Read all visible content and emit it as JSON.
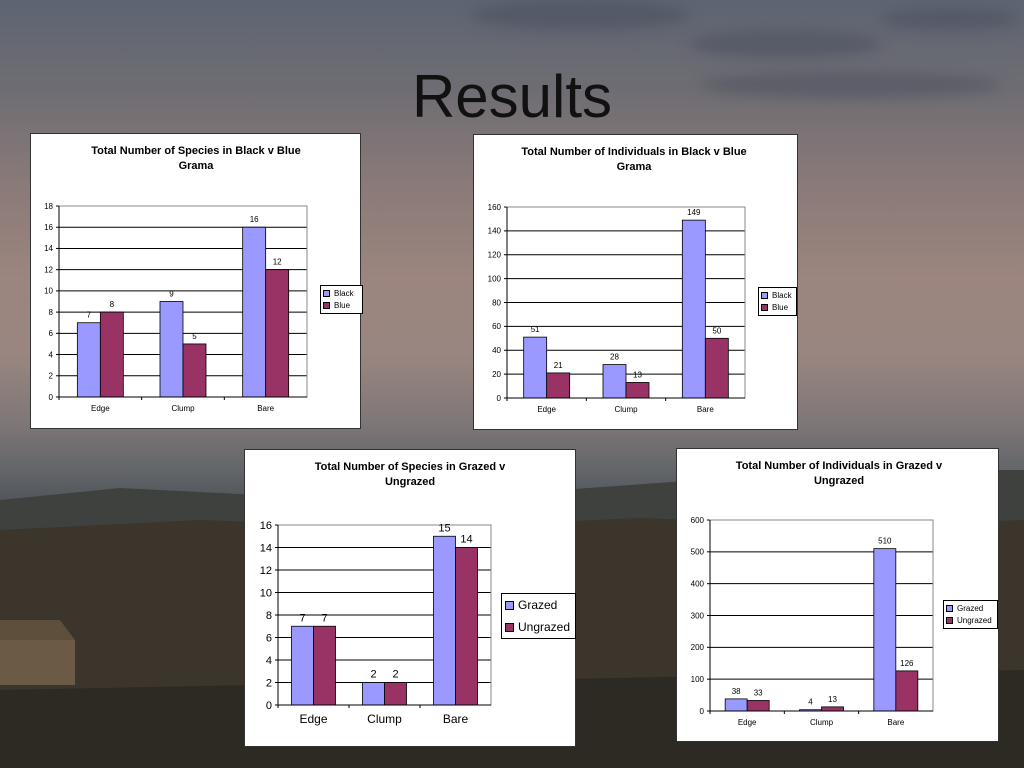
{
  "slide": {
    "title": "Results"
  },
  "colors": {
    "series1": "#9999ff",
    "series2": "#993366",
    "grid": "#000000"
  },
  "chart_data": [
    {
      "type": "bar",
      "title": "Total Number of Species in Black v Blue Grama",
      "categories": [
        "Edge",
        "Clump",
        "Bare"
      ],
      "series": [
        {
          "name": "Black",
          "values": [
            7,
            9,
            16
          ]
        },
        {
          "name": "Blue",
          "values": [
            8,
            5,
            12
          ]
        }
      ],
      "ylim": [
        0,
        18
      ],
      "yticks": [
        0,
        2,
        4,
        6,
        8,
        10,
        12,
        14,
        16,
        18
      ],
      "grid": true,
      "legend": "right"
    },
    {
      "type": "bar",
      "title": "Total Number of Individuals in Black v Blue Grama",
      "categories": [
        "Edge",
        "Clump",
        "Bare"
      ],
      "series": [
        {
          "name": "Black",
          "values": [
            51,
            28,
            149
          ]
        },
        {
          "name": "Blue",
          "values": [
            21,
            13,
            50
          ]
        }
      ],
      "ylim": [
        0,
        160
      ],
      "yticks": [
        0,
        20,
        40,
        60,
        80,
        100,
        120,
        140,
        160
      ],
      "grid": true,
      "legend": "right"
    },
    {
      "type": "bar",
      "title": "Total Number of Species in Grazed v Ungrazed",
      "categories": [
        "Edge",
        "Clump",
        "Bare"
      ],
      "series": [
        {
          "name": "Grazed",
          "values": [
            7,
            2,
            15
          ]
        },
        {
          "name": "Ungrazed",
          "values": [
            7,
            2,
            14
          ]
        }
      ],
      "ylim": [
        0,
        16
      ],
      "yticks": [
        0,
        2,
        4,
        6,
        8,
        10,
        12,
        14,
        16
      ],
      "grid": true,
      "legend": "right"
    },
    {
      "type": "bar",
      "title": "Total Number of Individuals in Grazed v Ungrazed",
      "categories": [
        "Edge",
        "Clump",
        "Bare"
      ],
      "series": [
        {
          "name": "Grazed",
          "values": [
            38,
            4,
            510
          ]
        },
        {
          "name": "Ungrazed",
          "values": [
            33,
            13,
            126
          ]
        }
      ],
      "ylim": [
        0,
        600
      ],
      "yticks": [
        0,
        100,
        200,
        300,
        400,
        500,
        600
      ],
      "grid": true,
      "legend": "right"
    }
  ]
}
